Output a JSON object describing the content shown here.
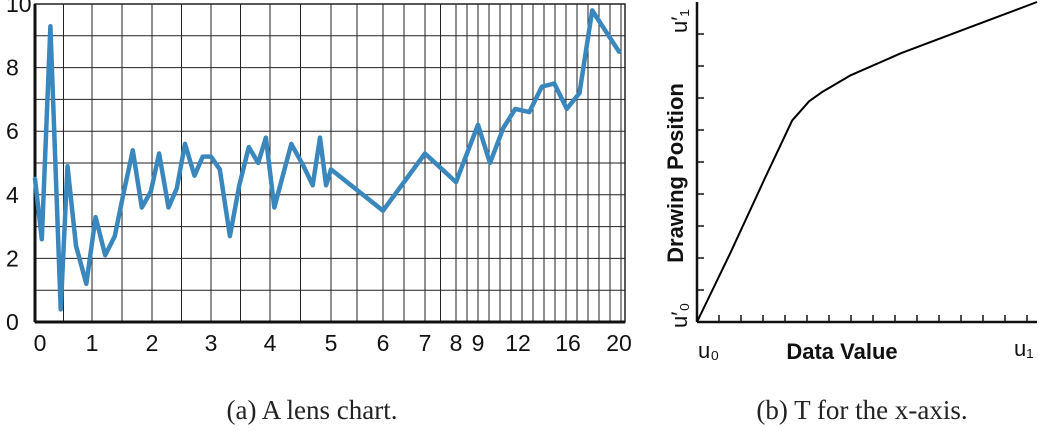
{
  "chart_data": [
    {
      "type": "line",
      "title": "",
      "caption": "(a)  A lens chart.",
      "xlabel": "",
      "ylabel": "",
      "ylim": [
        0,
        10
      ],
      "y_ticks": [
        "0",
        "2",
        "4",
        "6",
        "8",
        "10"
      ],
      "x_ticks": [
        "0",
        "1",
        "2",
        "3",
        "4",
        "5",
        "6",
        "7",
        "8",
        "9",
        "12",
        "16",
        "20"
      ],
      "x_tick_values": [
        0,
        1,
        2,
        3,
        4,
        5,
        6,
        7,
        8,
        9,
        12,
        16,
        20
      ],
      "grid": true,
      "color": "#3a87bd",
      "series": [
        {
          "x": [
            0,
            0.12,
            0.27,
            0.45,
            0.57,
            0.72,
            0.9,
            1.06,
            1.22,
            1.38,
            1.52,
            1.68,
            1.83,
            1.98,
            2.12,
            2.28,
            2.42,
            2.56,
            2.72,
            2.86,
            3.0,
            3.15,
            3.32,
            3.48,
            3.64,
            3.8,
            3.93,
            4.07,
            4.35,
            4.55,
            4.7,
            4.82,
            4.92,
            5.0,
            6.0,
            7.0,
            8.0,
            9.0,
            9.9,
            10.9,
            11.8,
            12.9,
            13.9,
            14.9,
            15.9,
            16.9,
            17.9,
            20.0
          ],
          "y": [
            4.5,
            2.6,
            9.3,
            0.4,
            4.9,
            2.4,
            1.2,
            3.3,
            2.1,
            2.7,
            4.0,
            5.4,
            3.6,
            4.1,
            5.3,
            3.6,
            4.2,
            5.6,
            4.6,
            5.2,
            5.2,
            4.8,
            2.7,
            4.3,
            5.5,
            5.0,
            5.8,
            3.6,
            5.6,
            4.9,
            4.3,
            5.8,
            4.3,
            4.8,
            3.5,
            5.3,
            4.4,
            6.2,
            5.0,
            6.1,
            6.7,
            6.6,
            7.4,
            7.5,
            6.7,
            7.2,
            9.8,
            8.5
          ]
        }
      ]
    },
    {
      "type": "line",
      "title": "",
      "caption": "(b)  T for the x-axis.",
      "xlabel": "Data Value",
      "ylabel": "Drawing Position",
      "x_start": "u₀",
      "x_end": "u₁",
      "y_start": "u′₀",
      "y_end": "u′₁",
      "x": [
        0,
        0.1,
        0.2,
        0.28,
        0.33,
        0.37,
        0.45,
        0.6,
        0.8,
        1.0
      ],
      "y": [
        0,
        0.22,
        0.45,
        0.63,
        0.69,
        0.72,
        0.77,
        0.84,
        0.92,
        1.0
      ]
    }
  ]
}
